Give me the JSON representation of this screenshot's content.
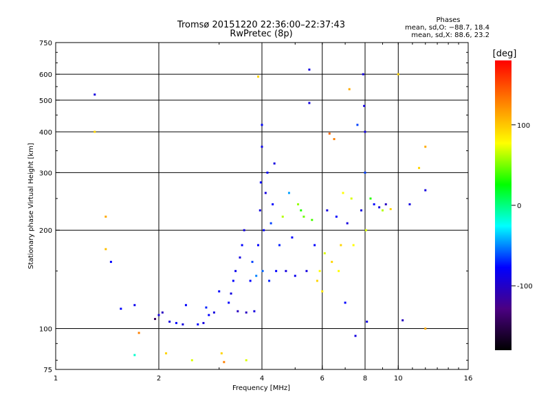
{
  "chart_data": {
    "type": "scatter",
    "title": "Tromsø 20151220 22:36:00–22:37:43",
    "subtitle": "RwPretec (8p)",
    "xlabel": "Frequency [MHz]",
    "ylabel": "Stationary phase Virtual Height [km]",
    "xscale": "log2",
    "yscale": "log",
    "xlim": [
      1,
      16
    ],
    "ylim": [
      75,
      750
    ],
    "x_ticks": [
      1,
      2,
      4,
      6,
      8,
      10,
      16
    ],
    "x_tick_labels": [
      "1",
      "2",
      "4",
      "6",
      "8",
      "10",
      "16"
    ],
    "x_grid": [
      2,
      4,
      6,
      8,
      10
    ],
    "y_ticks": [
      75,
      100,
      200,
      300,
      400,
      500,
      600,
      750
    ],
    "y_tick_labels": [
      "75",
      "100",
      "200",
      "300",
      "400",
      "500",
      "600",
      "750"
    ],
    "y_grid": [
      100,
      200,
      300,
      400,
      500,
      600
    ],
    "grid": true,
    "phases": {
      "title": "Phases",
      "line1": "mean, sd,O: −88.7, 18.4",
      "line2": "mean, sd,X: 88.6, 23.2"
    },
    "colorbar": {
      "title": "[deg]",
      "range": [
        -180,
        180
      ],
      "ticks": [
        100,
        0,
        -100
      ],
      "tick_labels": [
        "100",
        "0",
        "-100"
      ],
      "colors": [
        "#ff0000",
        "#ff8000",
        "#ffff00",
        "#00ff00",
        "#00ffff",
        "#0000ff",
        "#4b0082",
        "#000000"
      ]
    },
    "points": [
      {
        "x": 1.3,
        "y": 520,
        "phase": -110
      },
      {
        "x": 1.3,
        "y": 400,
        "phase": 110
      },
      {
        "x": 1.4,
        "y": 220,
        "phase": 120
      },
      {
        "x": 1.4,
        "y": 175,
        "phase": 115
      },
      {
        "x": 1.45,
        "y": 160,
        "phase": -100
      },
      {
        "x": 1.55,
        "y": 115,
        "phase": -100
      },
      {
        "x": 1.7,
        "y": 118,
        "phase": -105
      },
      {
        "x": 1.75,
        "y": 97,
        "phase": 130
      },
      {
        "x": 1.7,
        "y": 83,
        "phase": -10
      },
      {
        "x": 1.95,
        "y": 107,
        "phase": -150
      },
      {
        "x": 2.0,
        "y": 110,
        "phase": -110
      },
      {
        "x": 2.05,
        "y": 112,
        "phase": -120
      },
      {
        "x": 2.1,
        "y": 84,
        "phase": 110
      },
      {
        "x": 2.15,
        "y": 105,
        "phase": -110
      },
      {
        "x": 2.25,
        "y": 104,
        "phase": -100
      },
      {
        "x": 2.35,
        "y": 103,
        "phase": -110
      },
      {
        "x": 2.4,
        "y": 118,
        "phase": -100
      },
      {
        "x": 2.5,
        "y": 80,
        "phase": 90
      },
      {
        "x": 2.6,
        "y": 103,
        "phase": -100
      },
      {
        "x": 2.7,
        "y": 104,
        "phase": -110
      },
      {
        "x": 2.75,
        "y": 116,
        "phase": -90
      },
      {
        "x": 2.8,
        "y": 110,
        "phase": -100
      },
      {
        "x": 2.9,
        "y": 112,
        "phase": -110
      },
      {
        "x": 3.0,
        "y": 130,
        "phase": -100
      },
      {
        "x": 3.05,
        "y": 84,
        "phase": 110
      },
      {
        "x": 3.1,
        "y": 79,
        "phase": 130
      },
      {
        "x": 3.2,
        "y": 120,
        "phase": -100
      },
      {
        "x": 3.25,
        "y": 128,
        "phase": -110
      },
      {
        "x": 3.3,
        "y": 140,
        "phase": -100
      },
      {
        "x": 3.35,
        "y": 150,
        "phase": -105
      },
      {
        "x": 3.4,
        "y": 113,
        "phase": -120
      },
      {
        "x": 3.45,
        "y": 165,
        "phase": -110
      },
      {
        "x": 3.5,
        "y": 180,
        "phase": -100
      },
      {
        "x": 3.55,
        "y": 200,
        "phase": -110
      },
      {
        "x": 3.6,
        "y": 112,
        "phase": -120
      },
      {
        "x": 3.6,
        "y": 80,
        "phase": 90
      },
      {
        "x": 3.7,
        "y": 140,
        "phase": -100
      },
      {
        "x": 3.75,
        "y": 160,
        "phase": -80
      },
      {
        "x": 3.8,
        "y": 113,
        "phase": -110
      },
      {
        "x": 3.85,
        "y": 145,
        "phase": -60
      },
      {
        "x": 3.9,
        "y": 180,
        "phase": -100
      },
      {
        "x": 3.9,
        "y": 590,
        "phase": 110
      },
      {
        "x": 3.95,
        "y": 230,
        "phase": -110
      },
      {
        "x": 3.97,
        "y": 280,
        "phase": -100
      },
      {
        "x": 4.0,
        "y": 360,
        "phase": -105
      },
      {
        "x": 4.0,
        "y": 420,
        "phase": -100
      },
      {
        "x": 4.02,
        "y": 150,
        "phase": -70
      },
      {
        "x": 4.05,
        "y": 200,
        "phase": -100
      },
      {
        "x": 4.1,
        "y": 260,
        "phase": -110
      },
      {
        "x": 4.15,
        "y": 300,
        "phase": -100
      },
      {
        "x": 4.2,
        "y": 140,
        "phase": -90
      },
      {
        "x": 4.25,
        "y": 210,
        "phase": -80
      },
      {
        "x": 4.3,
        "y": 240,
        "phase": -100
      },
      {
        "x": 4.35,
        "y": 320,
        "phase": -110
      },
      {
        "x": 4.4,
        "y": 150,
        "phase": -100
      },
      {
        "x": 4.5,
        "y": 180,
        "phase": -90
      },
      {
        "x": 4.6,
        "y": 220,
        "phase": 80
      },
      {
        "x": 4.7,
        "y": 150,
        "phase": -110
      },
      {
        "x": 4.8,
        "y": 260,
        "phase": -50
      },
      {
        "x": 4.9,
        "y": 190,
        "phase": -100
      },
      {
        "x": 5.0,
        "y": 145,
        "phase": -105
      },
      {
        "x": 5.1,
        "y": 240,
        "phase": 70
      },
      {
        "x": 5.2,
        "y": 230,
        "phase": 40
      },
      {
        "x": 5.3,
        "y": 220,
        "phase": 60
      },
      {
        "x": 5.4,
        "y": 150,
        "phase": -110
      },
      {
        "x": 5.5,
        "y": 620,
        "phase": -110
      },
      {
        "x": 5.5,
        "y": 490,
        "phase": -110
      },
      {
        "x": 5.6,
        "y": 215,
        "phase": 50
      },
      {
        "x": 5.7,
        "y": 180,
        "phase": -100
      },
      {
        "x": 5.8,
        "y": 140,
        "phase": 110
      },
      {
        "x": 5.9,
        "y": 150,
        "phase": 100
      },
      {
        "x": 6.0,
        "y": 130,
        "phase": 105
      },
      {
        "x": 6.1,
        "y": 170,
        "phase": 90
      },
      {
        "x": 6.2,
        "y": 230,
        "phase": -110
      },
      {
        "x": 6.3,
        "y": 395,
        "phase": 140
      },
      {
        "x": 6.4,
        "y": 160,
        "phase": 110
      },
      {
        "x": 6.5,
        "y": 380,
        "phase": 130
      },
      {
        "x": 6.6,
        "y": 220,
        "phase": -100
      },
      {
        "x": 6.7,
        "y": 150,
        "phase": 100
      },
      {
        "x": 6.8,
        "y": 180,
        "phase": 110
      },
      {
        "x": 6.9,
        "y": 260,
        "phase": 100
      },
      {
        "x": 7.0,
        "y": 120,
        "phase": -100
      },
      {
        "x": 7.1,
        "y": 210,
        "phase": -110
      },
      {
        "x": 7.2,
        "y": 540,
        "phase": 120
      },
      {
        "x": 7.3,
        "y": 250,
        "phase": 90
      },
      {
        "x": 7.4,
        "y": 180,
        "phase": 100
      },
      {
        "x": 7.5,
        "y": 95,
        "phase": -110
      },
      {
        "x": 7.6,
        "y": 420,
        "phase": -80
      },
      {
        "x": 7.8,
        "y": 230,
        "phase": -110
      },
      {
        "x": 7.9,
        "y": 600,
        "phase": -110
      },
      {
        "x": 7.95,
        "y": 480,
        "phase": -110
      },
      {
        "x": 8.0,
        "y": 400,
        "phase": -110
      },
      {
        "x": 8.0,
        "y": 300,
        "phase": -80
      },
      {
        "x": 8.05,
        "y": 200,
        "phase": 90
      },
      {
        "x": 8.1,
        "y": 105,
        "phase": -110
      },
      {
        "x": 8.3,
        "y": 250,
        "phase": 40
      },
      {
        "x": 8.5,
        "y": 240,
        "phase": -100
      },
      {
        "x": 8.8,
        "y": 235,
        "phase": -110
      },
      {
        "x": 9.0,
        "y": 230,
        "phase": 80
      },
      {
        "x": 9.2,
        "y": 240,
        "phase": -120
      },
      {
        "x": 9.5,
        "y": 232,
        "phase": 110
      },
      {
        "x": 10.0,
        "y": 600,
        "phase": 110
      },
      {
        "x": 10.3,
        "y": 106,
        "phase": -120
      },
      {
        "x": 10.8,
        "y": 240,
        "phase": -110
      },
      {
        "x": 11.5,
        "y": 310,
        "phase": 110
      },
      {
        "x": 12.0,
        "y": 360,
        "phase": 120
      },
      {
        "x": 12.0,
        "y": 265,
        "phase": -110
      },
      {
        "x": 12.0,
        "y": 100,
        "phase": 120
      }
    ]
  }
}
